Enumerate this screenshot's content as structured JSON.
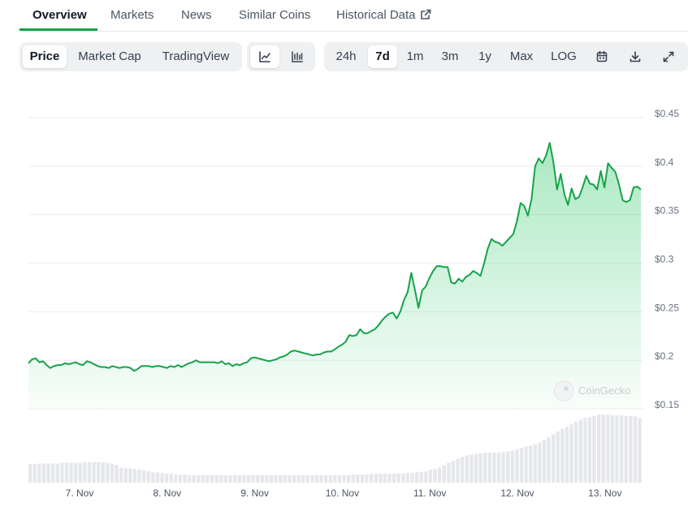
{
  "nav": {
    "tabs": [
      "Overview",
      "Markets",
      "News",
      "Similar Coins",
      "Historical Data"
    ],
    "active": "Overview"
  },
  "toolbar": {
    "chart_types": [
      "Price",
      "Market Cap",
      "TradingView"
    ],
    "active_type": "Price",
    "view_icons": [
      "line-chart-icon",
      "candlestick-chart-icon"
    ],
    "ranges": [
      "24h",
      "7d",
      "1m",
      "3m",
      "1y",
      "Max",
      "LOG"
    ],
    "active_range": "7d",
    "tool_icons": [
      "calendar-icon",
      "download-icon",
      "expand-icon"
    ]
  },
  "colors": {
    "line": "#16a34a",
    "fill": "#22c55e",
    "accent": "#16a34a",
    "volume": "#e5e7eb"
  },
  "watermark": "CoinGecko",
  "chart_data": {
    "type": "area",
    "x_ticks": [
      "7. Nov",
      "8. Nov",
      "9. Nov",
      "10. Nov",
      "11. Nov",
      "12. Nov",
      "13. Nov"
    ],
    "y_ticks": [
      "$0.45",
      "$0.4",
      "$0.35",
      "$0.3",
      "$0.25",
      "$0.2",
      "$0.15"
    ],
    "ylim": [
      0.15,
      0.45
    ],
    "grid": true,
    "price": [
      0.197,
      0.201,
      0.202,
      0.198,
      0.199,
      0.195,
      0.192,
      0.194,
      0.195,
      0.195,
      0.197,
      0.196,
      0.197,
      0.198,
      0.196,
      0.195,
      0.199,
      0.198,
      0.196,
      0.194,
      0.193,
      0.193,
      0.192,
      0.194,
      0.193,
      0.192,
      0.193,
      0.193,
      0.192,
      0.189,
      0.191,
      0.194,
      0.194,
      0.194,
      0.193,
      0.194,
      0.194,
      0.193,
      0.192,
      0.194,
      0.193,
      0.195,
      0.193,
      0.195,
      0.197,
      0.198,
      0.2,
      0.198,
      0.198,
      0.198,
      0.198,
      0.198,
      0.197,
      0.199,
      0.196,
      0.197,
      0.194,
      0.196,
      0.195,
      0.197,
      0.198,
      0.202,
      0.203,
      0.202,
      0.201,
      0.2,
      0.199,
      0.2,
      0.201,
      0.203,
      0.204,
      0.206,
      0.209,
      0.21,
      0.209,
      0.208,
      0.207,
      0.206,
      0.205,
      0.206,
      0.206,
      0.208,
      0.209,
      0.209,
      0.211,
      0.214,
      0.216,
      0.219,
      0.226,
      0.225,
      0.226,
      0.232,
      0.228,
      0.228,
      0.23,
      0.232,
      0.236,
      0.241,
      0.245,
      0.248,
      0.249,
      0.243,
      0.25,
      0.262,
      0.27,
      0.29,
      0.273,
      0.254,
      0.272,
      0.276,
      0.285,
      0.292,
      0.297,
      0.297,
      0.296,
      0.296,
      0.28,
      0.279,
      0.284,
      0.281,
      0.286,
      0.288,
      0.292,
      0.29,
      0.287,
      0.3,
      0.315,
      0.325,
      0.322,
      0.321,
      0.318,
      0.322,
      0.326,
      0.33,
      0.343,
      0.362,
      0.359,
      0.349,
      0.366,
      0.4,
      0.408,
      0.403,
      0.411,
      0.424,
      0.404,
      0.376,
      0.392,
      0.371,
      0.36,
      0.377,
      0.366,
      0.368,
      0.378,
      0.39,
      0.382,
      0.381,
      0.376,
      0.395,
      0.378,
      0.403,
      0.398,
      0.394,
      0.381,
      0.365,
      0.363,
      0.365,
      0.378,
      0.379,
      0.376
    ],
    "volume": [
      0.27,
      0.27,
      0.28,
      0.28,
      0.28,
      0.28,
      0.28,
      0.29,
      0.29,
      0.29,
      0.29,
      0.29,
      0.3,
      0.3,
      0.3,
      0.3,
      0.3,
      0.29,
      0.28,
      0.26,
      0.22,
      0.21,
      0.21,
      0.2,
      0.19,
      0.18,
      0.17,
      0.15,
      0.15,
      0.14,
      0.13,
      0.13,
      0.12,
      0.12,
      0.12,
      0.11,
      0.11,
      0.11,
      0.11,
      0.11,
      0.11,
      0.11,
      0.11,
      0.11,
      0.11,
      0.11,
      0.11,
      0.11,
      0.11,
      0.11,
      0.11,
      0.11,
      0.11,
      0.11,
      0.11,
      0.11,
      0.11,
      0.11,
      0.11,
      0.11,
      0.11,
      0.11,
      0.11,
      0.11,
      0.11,
      0.11,
      0.11,
      0.11,
      0.11,
      0.11,
      0.11,
      0.12,
      0.12,
      0.12,
      0.12,
      0.13,
      0.13,
      0.13,
      0.13,
      0.13,
      0.13,
      0.13,
      0.13,
      0.14,
      0.14,
      0.15,
      0.16,
      0.17,
      0.19,
      0.2,
      0.22,
      0.26,
      0.29,
      0.32,
      0.35,
      0.38,
      0.4,
      0.41,
      0.42,
      0.43,
      0.44,
      0.44,
      0.44,
      0.44,
      0.45,
      0.46,
      0.47,
      0.49,
      0.51,
      0.53,
      0.54,
      0.56,
      0.59,
      0.63,
      0.67,
      0.71,
      0.75,
      0.79,
      0.82,
      0.86,
      0.89,
      0.92,
      0.95,
      0.96,
      0.98,
      1.0,
      1.0,
      1.0,
      0.99,
      0.99,
      0.99,
      0.98,
      0.98,
      0.97,
      0.95
    ]
  }
}
